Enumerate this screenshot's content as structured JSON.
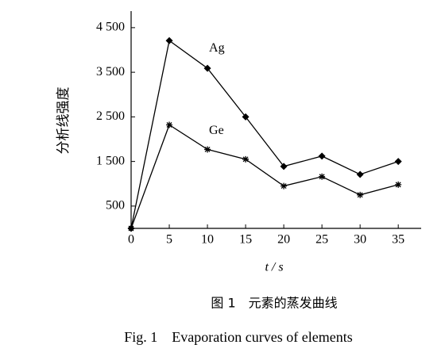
{
  "chart_data": {
    "type": "line",
    "y_label": "分析线强度",
    "x_label": "t / s",
    "caption_cn": "图 1　元素的蒸发曲线",
    "caption_en": "Fig. 1　Evaporation curves of elements",
    "x": [
      0,
      5,
      10,
      15,
      20,
      25,
      30,
      35
    ],
    "series": [
      {
        "name": "Ag",
        "color": "#000000",
        "marker": "diamond",
        "values": [
          0,
          4210,
          3590,
          2500,
          1390,
          1620,
          1210,
          1500
        ]
      },
      {
        "name": "Ge",
        "color": "#000000",
        "marker": "asterisk",
        "values": [
          0,
          2320,
          1770,
          1550,
          950,
          1160,
          750,
          980
        ]
      }
    ],
    "xlim": [
      0,
      38
    ],
    "xticks": [
      0,
      5,
      10,
      15,
      20,
      25,
      30,
      35
    ],
    "ylim": [
      0,
      4800
    ],
    "yticks": [
      500,
      {
        "value": 1500,
        "label": "1 500"
      },
      {
        "value": 2500,
        "label": "2 500"
      },
      {
        "value": 3500,
        "label": "3 500"
      },
      {
        "value": 4500,
        "label": "4 500"
      }
    ],
    "grid": false
  }
}
